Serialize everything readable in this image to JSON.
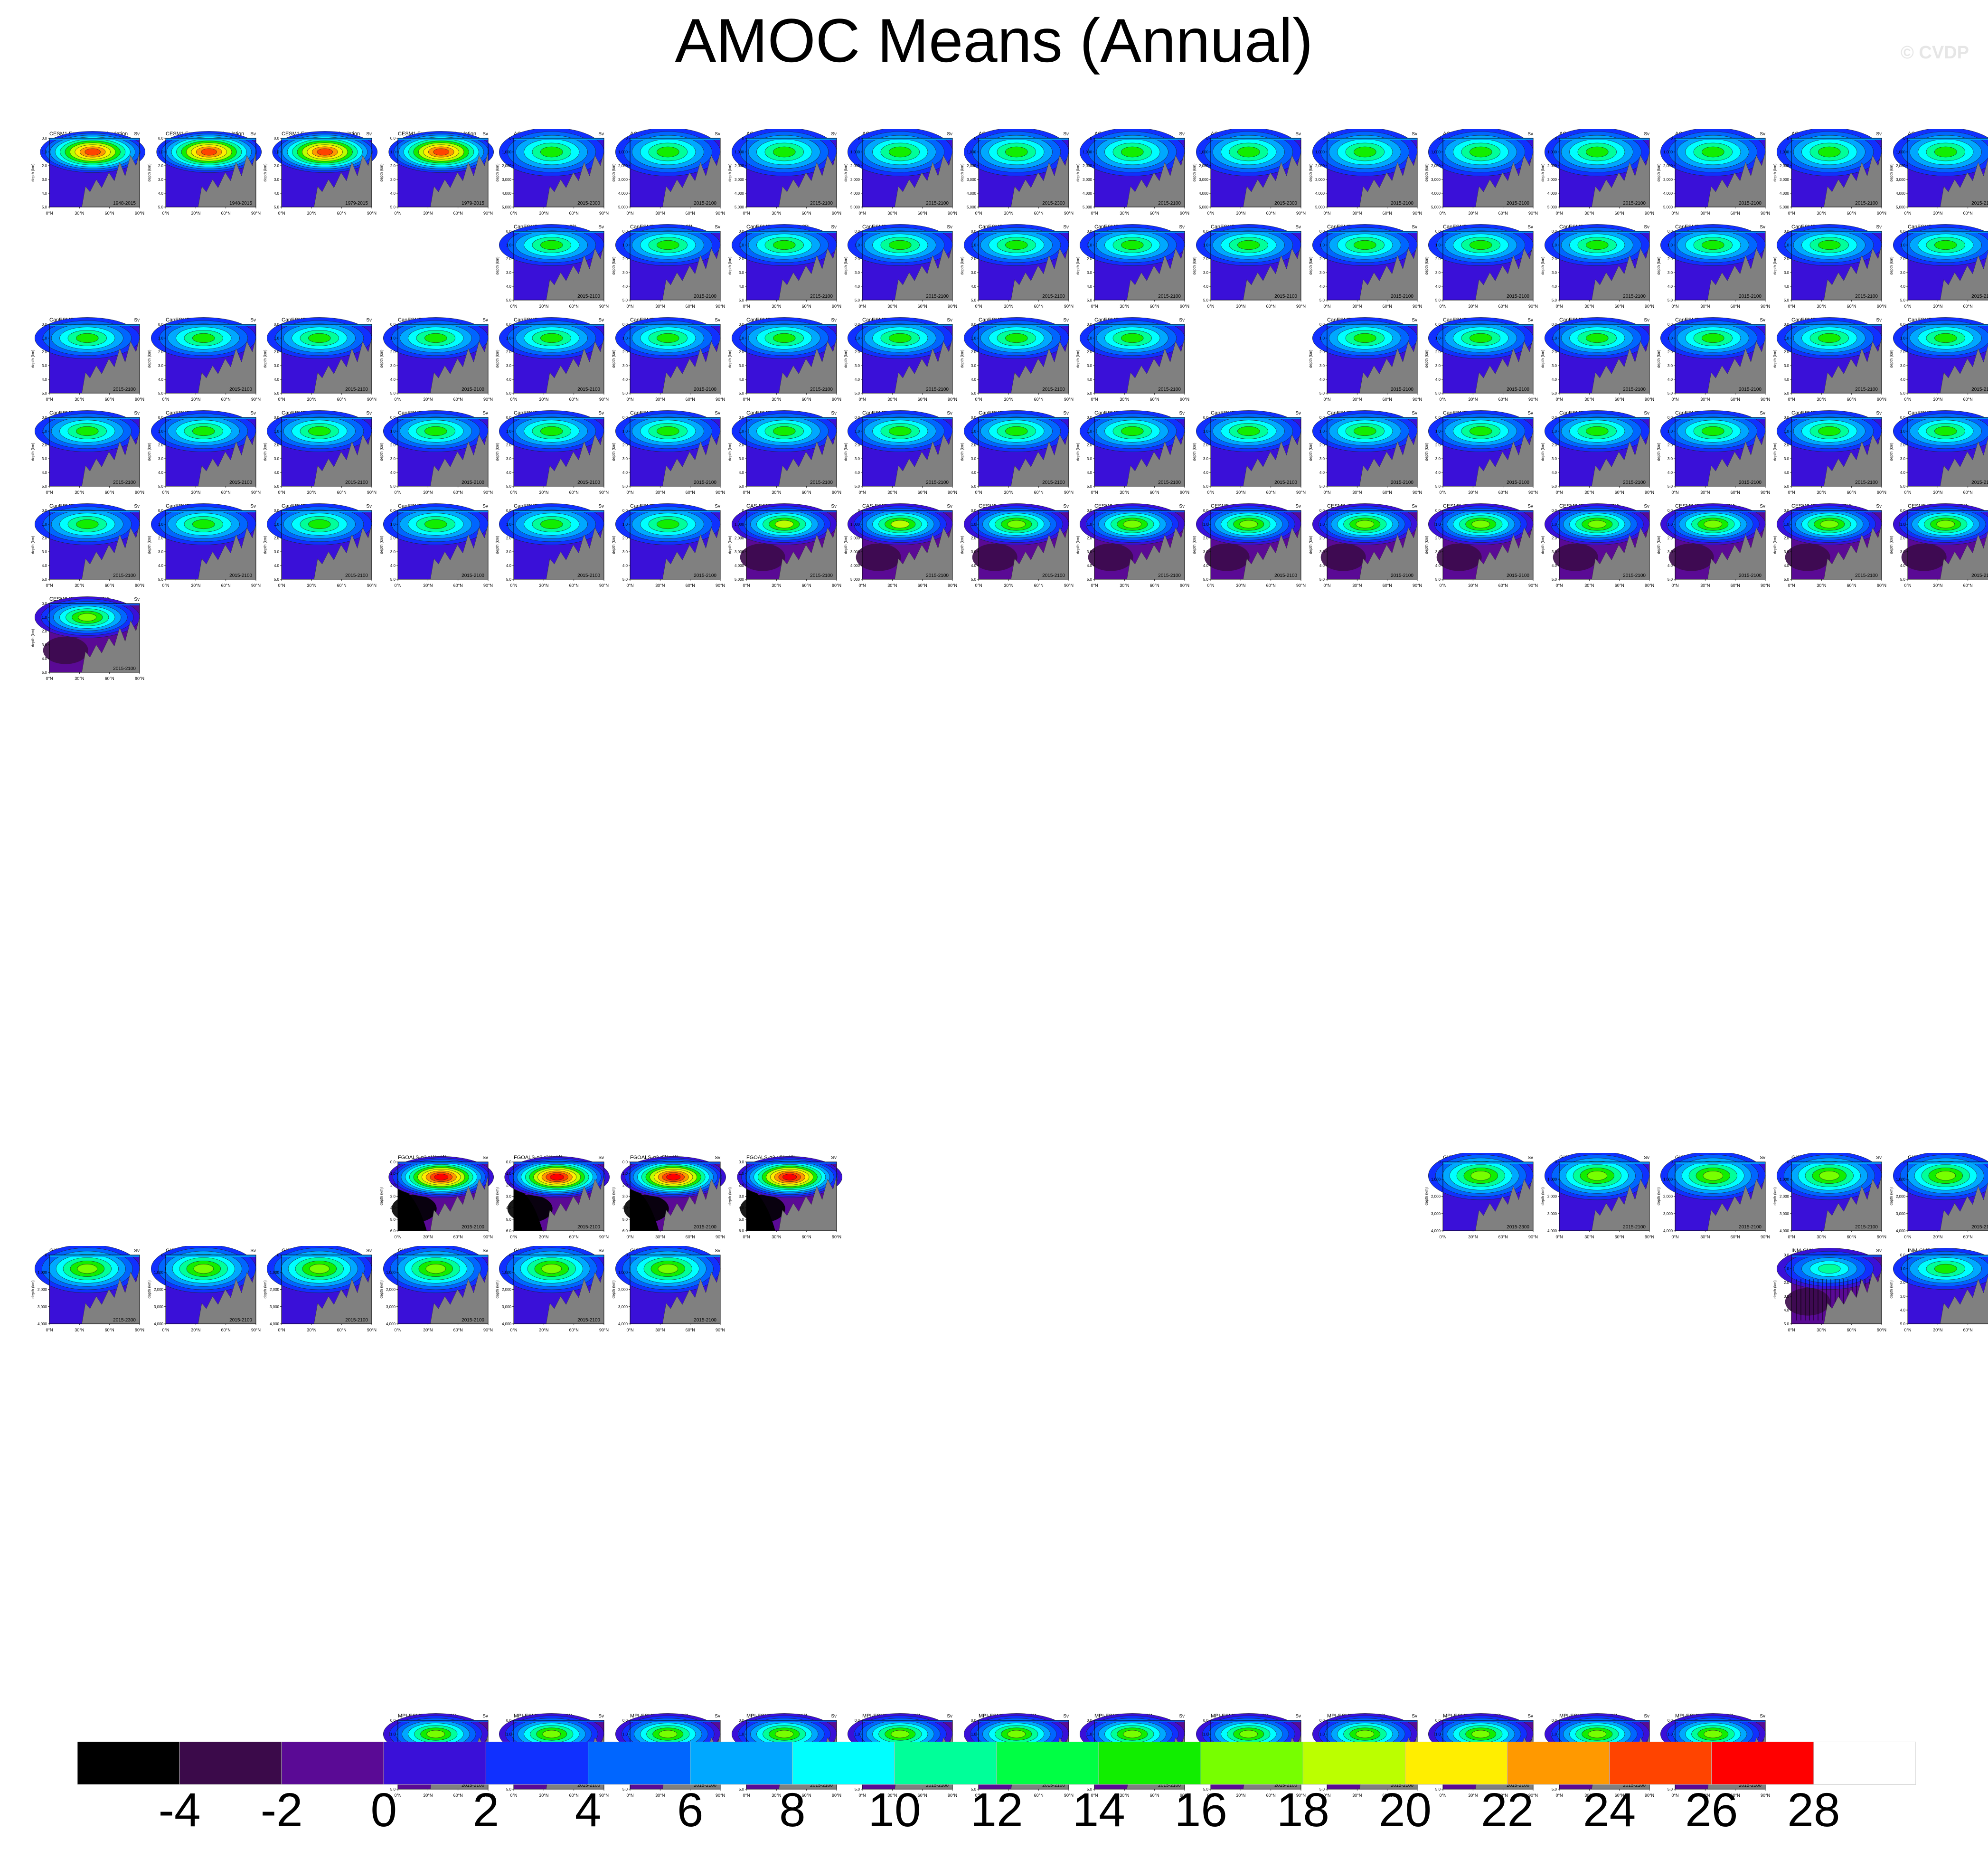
{
  "title": "AMOC Means (Annual)",
  "watermark": "© CVDP",
  "units": "Sv",
  "yaxis_label": "depth (km)",
  "xticks": [
    "0°N",
    "30°N",
    "60°N",
    "90°N"
  ],
  "colorbar": {
    "labels": [
      "-4",
      "-2",
      "0",
      "2",
      "4",
      "6",
      "8",
      "10",
      "12",
      "14",
      "16",
      "18",
      "20",
      "22",
      "24",
      "26",
      "28"
    ],
    "colors": [
      "#000000",
      "#3b0a4a",
      "#5a0a95",
      "#3a10d8",
      "#1030ff",
      "#0066ff",
      "#00a8ff",
      "#00ffff",
      "#00ff99",
      "#00ff44",
      "#11ee00",
      "#77ff00",
      "#bbff00",
      "#ffee00",
      "#ff9900",
      "#ff4400",
      "#ff0000",
      "#ffffff"
    ]
  },
  "chart_data": {
    "type": "heatmap",
    "title": "AMOC Means (Annual)",
    "units": "Sv",
    "ylabel": "depth (km)",
    "xlabel": "",
    "x_ticks": [
      "0°N",
      "30°N",
      "60°N",
      "90°N"
    ],
    "color_levels": [
      -4,
      -2,
      0,
      2,
      4,
      6,
      8,
      10,
      12,
      14,
      16,
      18,
      20,
      22,
      24,
      26,
      28
    ],
    "panels": [
      {
        "row": 0,
        "col": 0,
        "title": "CESM1 Forced Ocean Simulation",
        "period": "1948-2015",
        "style": "hot"
      },
      {
        "row": 0,
        "col": 1,
        "title": "CESM1 Forced Ocean Simulation",
        "period": "1948-2015",
        "style": "hot"
      },
      {
        "row": 0,
        "col": 2,
        "title": "CESM1 Forced Ocean Simulation",
        "period": "1979-2015",
        "style": "hot"
      },
      {
        "row": 0,
        "col": 3,
        "title": "CESM1 Forced Ocean Simulation",
        "period": "1979-2015",
        "style": "hot"
      },
      {
        "row": 0,
        "col": 4,
        "title": "ACCESS-CM2 r1i1p1f1",
        "period": "2015-2300",
        "style": "deep"
      },
      {
        "row": 0,
        "col": 5,
        "title": "ACCESS-CM2 r2i1p1f1",
        "period": "2015-2100",
        "style": "deep"
      },
      {
        "row": 0,
        "col": 6,
        "title": "ACCESS-CM2 r3i1p1f1",
        "period": "2015-2100",
        "style": "deep"
      },
      {
        "row": 0,
        "col": 7,
        "title": "ACCESS-ESM1-5 r10i1p1f1",
        "period": "2015-2100",
        "style": "deep"
      },
      {
        "row": 0,
        "col": 8,
        "title": "ACCESS-ESM1-5 r1i1p1f1",
        "period": "2015-2300",
        "style": "deep"
      },
      {
        "row": 0,
        "col": 9,
        "title": "ACCESS-ESM1-5 r2i1p1f1",
        "period": "2015-2100",
        "style": "deep"
      },
      {
        "row": 0,
        "col": 10,
        "title": "ACCESS-ESM1-5 r3i1p1f1",
        "period": "2015-2300",
        "style": "deep"
      },
      {
        "row": 0,
        "col": 11,
        "title": "ACCESS-ESM1-5 r4i1p1f1",
        "period": "2015-2100",
        "style": "deep"
      },
      {
        "row": 0,
        "col": 12,
        "title": "ACCESS-ESM1-5 r5i1p1f1",
        "period": "2015-2100",
        "style": "deep"
      },
      {
        "row": 0,
        "col": 13,
        "title": "ACCESS-ESM1-5 r6i1p1f1",
        "period": "2015-2100",
        "style": "deep"
      },
      {
        "row": 0,
        "col": 14,
        "title": "ACCESS-ESM1-5 r7i1p1f1",
        "period": "2015-2100",
        "style": "deep"
      },
      {
        "row": 0,
        "col": 15,
        "title": "ACCESS-ESM1-5 r8i1p1f1",
        "period": "2015-2100",
        "style": "deep"
      },
      {
        "row": 0,
        "col": 16,
        "title": "ACCESS-ESM1-5 r9i1p1f1",
        "period": "2015-2100",
        "style": "deep"
      },
      {
        "row": 1,
        "col": 4,
        "title": "CanESM5-CanOE r1i1p2f1",
        "period": "2015-2100",
        "style": "can"
      },
      {
        "row": 1,
        "col": 5,
        "title": "CanESM5-CanOE r2i1p2f1",
        "period": "2015-2100",
        "style": "can"
      },
      {
        "row": 1,
        "col": 6,
        "title": "CanESM5-CanOE r3i1p2f1",
        "period": "2015-2100",
        "style": "can"
      },
      {
        "row": 1,
        "col": 7,
        "title": "CanESM5 r10i1p1f1",
        "period": "2015-2100",
        "style": "can"
      },
      {
        "row": 1,
        "col": 8,
        "title": "CanESM5 r10i1p2f1",
        "period": "2015-2100",
        "style": "can"
      },
      {
        "row": 1,
        "col": 9,
        "title": "CanESM5 r11i1p1f1",
        "period": "2015-2100",
        "style": "can"
      },
      {
        "row": 1,
        "col": 10,
        "title": "CanESM5 r11i1p2f1",
        "period": "2015-2100",
        "style": "can"
      },
      {
        "row": 1,
        "col": 11,
        "title": "CanESM5 r12i1p1f1",
        "period": "2015-2100",
        "style": "can"
      },
      {
        "row": 1,
        "col": 12,
        "title": "CanESM5 r12i1p2f1",
        "period": "2015-2100",
        "style": "can"
      },
      {
        "row": 1,
        "col": 13,
        "title": "CanESM5 r13i1p1f1",
        "period": "2015-2100",
        "style": "can"
      },
      {
        "row": 1,
        "col": 14,
        "title": "CanESM5 r13i1p2f1",
        "period": "2015-2100",
        "style": "can"
      },
      {
        "row": 1,
        "col": 15,
        "title": "CanESM5 r14i1p1f1",
        "period": "2015-2100",
        "style": "can"
      },
      {
        "row": 1,
        "col": 16,
        "title": "CanESM5 r14i1p2f1",
        "period": "2015-2100",
        "style": "can"
      },
      {
        "row": 2,
        "col": 0,
        "title": "CanESM5 r15i1p1f1",
        "period": "2015-2100",
        "style": "can"
      },
      {
        "row": 2,
        "col": 1,
        "title": "CanESM5 r15i1p2f1",
        "period": "2015-2100",
        "style": "can"
      },
      {
        "row": 2,
        "col": 2,
        "title": "CanESM5 r16i1p1f1",
        "period": "2015-2100",
        "style": "can"
      },
      {
        "row": 2,
        "col": 3,
        "title": "CanESM5 r16i1p2f1",
        "period": "2015-2100",
        "style": "can"
      },
      {
        "row": 2,
        "col": 4,
        "title": "CanESM5 r17i1p1f1",
        "period": "2015-2100",
        "style": "can"
      },
      {
        "row": 2,
        "col": 5,
        "title": "CanESM5 r17i1p2f1",
        "period": "2015-2100",
        "style": "can"
      },
      {
        "row": 2,
        "col": 6,
        "title": "CanESM5 r18i1p1f1",
        "period": "2015-2100",
        "style": "can"
      },
      {
        "row": 2,
        "col": 7,
        "title": "CanESM5 r18i1p2f1",
        "period": "2015-2100",
        "style": "can"
      },
      {
        "row": 2,
        "col": 8,
        "title": "CanESM5 r19i1p1f1",
        "period": "2015-2100",
        "style": "can"
      },
      {
        "row": 2,
        "col": 9,
        "title": "CanESM5 r19i1p2f1",
        "period": "2015-2100",
        "style": "can"
      },
      {
        "row": 2,
        "col": 11,
        "title": "CanESM5 r1i1p2f1",
        "period": "2015-2100",
        "style": "can"
      },
      {
        "row": 2,
        "col": 12,
        "title": "CanESM5 r20i1p1f1",
        "period": "2015-2100",
        "style": "can"
      },
      {
        "row": 2,
        "col": 13,
        "title": "CanESM5 r20i1p2f1",
        "period": "2015-2100",
        "style": "can"
      },
      {
        "row": 2,
        "col": 14,
        "title": "CanESM5 r21i1p1f1",
        "period": "2015-2100",
        "style": "can"
      },
      {
        "row": 2,
        "col": 15,
        "title": "CanESM5 r21i1p2f1",
        "period": "2015-2100",
        "style": "can"
      },
      {
        "row": 2,
        "col": 16,
        "title": "CanESM5 r22i1p1f1",
        "period": "2015-2100",
        "style": "can"
      },
      {
        "row": 3,
        "col": 0,
        "title": "CanESM5 r22i1p2f1",
        "period": "2015-2100",
        "style": "can"
      },
      {
        "row": 3,
        "col": 1,
        "title": "CanESM5 r23i1p1f1",
        "period": "2015-2100",
        "style": "can"
      },
      {
        "row": 3,
        "col": 2,
        "title": "CanESM5 r23i1p2f1",
        "period": "2015-2100",
        "style": "can"
      },
      {
        "row": 3,
        "col": 3,
        "title": "CanESM5 r24i1p1f1",
        "period": "2015-2100",
        "style": "can"
      },
      {
        "row": 3,
        "col": 4,
        "title": "CanESM5 r24i1p2f1",
        "period": "2015-2100",
        "style": "can"
      },
      {
        "row": 3,
        "col": 5,
        "title": "CanESM5 r25i1p1f1",
        "period": "2015-2100",
        "style": "can"
      },
      {
        "row": 3,
        "col": 6,
        "title": "CanESM5 r25i1p2f1",
        "period": "2015-2100",
        "style": "can"
      },
      {
        "row": 3,
        "col": 7,
        "title": "CanESM5 r2i1p1f1",
        "period": "2015-2100",
        "style": "can"
      },
      {
        "row": 3,
        "col": 8,
        "title": "CanESM5 r2i1p2f1",
        "period": "2015-2100",
        "style": "can"
      },
      {
        "row": 3,
        "col": 9,
        "title": "CanESM5 r3i1p1f1",
        "period": "2015-2100",
        "style": "can"
      },
      {
        "row": 3,
        "col": 10,
        "title": "CanESM5 r3i1p2f1",
        "period": "2015-2100",
        "style": "can"
      },
      {
        "row": 3,
        "col": 11,
        "title": "CanESM5 r4i1p1f1",
        "period": "2015-2100",
        "style": "can"
      },
      {
        "row": 3,
        "col": 12,
        "title": "CanESM5 r4i1p2f1",
        "period": "2015-2100",
        "style": "can"
      },
      {
        "row": 3,
        "col": 13,
        "title": "CanESM5 r5i1p1f1",
        "period": "2015-2100",
        "style": "can"
      },
      {
        "row": 3,
        "col": 14,
        "title": "CanESM5 r5i1p2f1",
        "period": "2015-2100",
        "style": "can"
      },
      {
        "row": 3,
        "col": 15,
        "title": "CanESM5 r6i1p1f1",
        "period": "2015-2100",
        "style": "can"
      },
      {
        "row": 3,
        "col": 16,
        "title": "CanESM5 r6i1p2f1",
        "period": "2015-2100",
        "style": "can"
      },
      {
        "row": 4,
        "col": 0,
        "title": "CanESM5 r7i1p1f1",
        "period": "2015-2100",
        "style": "can"
      },
      {
        "row": 4,
        "col": 1,
        "title": "CanESM5 r7i1p2f1",
        "period": "2015-2100",
        "style": "can"
      },
      {
        "row": 4,
        "col": 2,
        "title": "CanESM5 r8i1p1f1",
        "period": "2015-2100",
        "style": "can"
      },
      {
        "row": 4,
        "col": 3,
        "title": "CanESM5 r8i1p2f1",
        "period": "2015-2100",
        "style": "can"
      },
      {
        "row": 4,
        "col": 4,
        "title": "CanESM5 r9i1p1f1",
        "period": "2015-2100",
        "style": "can"
      },
      {
        "row": 4,
        "col": 5,
        "title": "CanESM5 r9i1p2f1",
        "period": "2015-2100",
        "style": "can"
      },
      {
        "row": 4,
        "col": 6,
        "title": "CAS-ESM2-0 r1i1p1f1",
        "period": "2015-2100",
        "style": "cas"
      },
      {
        "row": 4,
        "col": 7,
        "title": "CAS-ESM2-0 r3i1p1f1",
        "period": "2015-2100",
        "style": "cas"
      },
      {
        "row": 4,
        "col": 8,
        "title": "CESM2 r10i1p1f1",
        "period": "2015-2100",
        "style": "cesm2"
      },
      {
        "row": 4,
        "col": 9,
        "title": "CESM2 r11i1p1f1",
        "period": "2015-2100",
        "style": "cesm2"
      },
      {
        "row": 4,
        "col": 10,
        "title": "CESM2 r1i1p1f1",
        "period": "2015-2100",
        "style": "cesm2"
      },
      {
        "row": 4,
        "col": 11,
        "title": "CESM2 r2i1p1f1",
        "period": "2015-2100",
        "style": "cesm2"
      },
      {
        "row": 4,
        "col": 12,
        "title": "CESM2 r4i1p1f1",
        "period": "2015-2100",
        "style": "cesm2"
      },
      {
        "row": 4,
        "col": 13,
        "title": "CESM2-WACCM r1i1p1f1",
        "period": "2015-2100",
        "style": "cesm2"
      },
      {
        "row": 4,
        "col": 14,
        "title": "CESM2-WACCM r2i1p1f1",
        "period": "2015-2100",
        "style": "cesm2"
      },
      {
        "row": 4,
        "col": 15,
        "title": "CESM2-WACCM r3i1p1f1",
        "period": "2015-2100",
        "style": "cesm2"
      },
      {
        "row": 4,
        "col": 16,
        "title": "CESM2-WACCM r4i1p1f1",
        "period": "2015-2100",
        "style": "cesm2"
      },
      {
        "row": 5,
        "col": 0,
        "title": "CESM2-WACCM r5i1p1f1",
        "period": "2015-2100",
        "style": "cesm2"
      },
      {
        "row": 11,
        "col": 3,
        "title": "FGOALS-g3 r1i1p1f1",
        "period": "2015-2100",
        "style": "fgoals"
      },
      {
        "row": 11,
        "col": 4,
        "title": "FGOALS-g3 r3i1p1f1",
        "period": "2015-2100",
        "style": "fgoals"
      },
      {
        "row": 11,
        "col": 5,
        "title": "FGOALS-g3 r5i1p1f1",
        "period": "2015-2100",
        "style": "fgoals"
      },
      {
        "row": 11,
        "col": 6,
        "title": "FGOALS-g3 r4i1p1f1",
        "period": "",
        "style": "fgoals"
      },
      {
        "row": 11,
        "col": 12,
        "title": "GISS-E2-1-G r1i1p1f2",
        "period": "2015-2300",
        "style": "giss"
      },
      {
        "row": 11,
        "col": 13,
        "title": "GISS-E2-1-G r1i1p3f1",
        "period": "2015-2100",
        "style": "giss"
      },
      {
        "row": 11,
        "col": 14,
        "title": "GISS-E2-1-G r1i1p5f1",
        "period": "2015-2100",
        "style": "giss"
      },
      {
        "row": 11,
        "col": 15,
        "title": "GISS-E2-1-G r2i1p1f2",
        "period": "2015-2100",
        "style": "giss"
      },
      {
        "row": 11,
        "col": 16,
        "title": "GISS-E2-1-G r3i1p3f1",
        "period": "2015-2100",
        "style": "giss"
      },
      {
        "row": 12,
        "col": 0,
        "title": "GISS-E2-1-G r3i1p1f2",
        "period": "2015-2300",
        "style": "giss"
      },
      {
        "row": 12,
        "col": 1,
        "title": "GISS-E2-1-G r3i1p5f1",
        "period": "2015-2100",
        "style": "giss"
      },
      {
        "row": 12,
        "col": 2,
        "title": "GISS-E2-1-G r4i1p1f2",
        "period": "2015-2100",
        "style": "giss"
      },
      {
        "row": 12,
        "col": 3,
        "title": "GISS-E2-1-G r4i1p5f1",
        "period": "2015-2100",
        "style": "giss"
      },
      {
        "row": 12,
        "col": 4,
        "title": "GISS-E2-1-G r5i1p1f2",
        "period": "2015-2100",
        "style": "giss"
      },
      {
        "row": 12,
        "col": 5,
        "title": "GISS-E2-1-G r5i1p5f1",
        "period": "2015-2100",
        "style": "giss"
      },
      {
        "row": 12,
        "col": 15,
        "title": "INM-CM4-8 r1i1p1f1",
        "period": "",
        "style": "inm"
      },
      {
        "row": 12,
        "col": 16,
        "title": "INM-CM5-0 r1i1p1f1",
        "period": "",
        "style": "inm2"
      },
      {
        "row": 17,
        "col": 3,
        "title": "MPI-ESM1-2-HR r1i1p1f1",
        "period": "2015-2100",
        "style": "mpi"
      },
      {
        "row": 17,
        "col": 4,
        "title": "MPI-ESM1-2-HR r2i1p1f1",
        "period": "2015-2100",
        "style": "mpi"
      },
      {
        "row": 17,
        "col": 5,
        "title": "MPI-ESM1-2-LR r1i1p1f1",
        "period": "2015-2100",
        "style": "mpi"
      },
      {
        "row": 17,
        "col": 6,
        "title": "MPI-ESM1-2-LR r10i1p1f1",
        "period": "2015-2100",
        "style": "mpi"
      },
      {
        "row": 17,
        "col": 7,
        "title": "MPI-ESM1-2-LR r2i1p1f1",
        "period": "2015-2100",
        "style": "mpi"
      },
      {
        "row": 17,
        "col": 8,
        "title": "MPI-ESM1-2-LR r3i1p1f1",
        "period": "2015-2100",
        "style": "mpi"
      },
      {
        "row": 17,
        "col": 9,
        "title": "MPI-ESM1-2-LR r4i1p1f1",
        "period": "2015-2100",
        "style": "mpi"
      },
      {
        "row": 17,
        "col": 10,
        "title": "MPI-ESM1-2-LR r5i1p1f1",
        "period": "2015-2100",
        "style": "mpi"
      },
      {
        "row": 17,
        "col": 11,
        "title": "MPI-ESM1-2-LR r6i1p1f1",
        "period": "2015-2100",
        "style": "mpi"
      },
      {
        "row": 17,
        "col": 12,
        "title": "MPI-ESM1-2-LR r7i1p1f1",
        "period": "2015-2100",
        "style": "mpi"
      },
      {
        "row": 17,
        "col": 13,
        "title": "MPI-ESM1-2-LR r8i1p1f1",
        "period": "2015-2100",
        "style": "mpi"
      },
      {
        "row": 17,
        "col": 14,
        "title": "MPI-ESM1-2-LR r9i1p1f1",
        "period": "2015-2100",
        "style": "mpi"
      }
    ]
  }
}
